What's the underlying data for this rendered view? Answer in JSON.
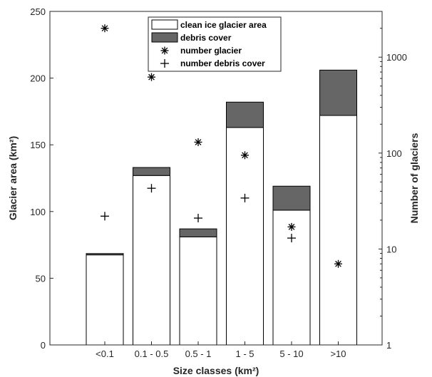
{
  "chart_data": {
    "type": "bar",
    "xlabel": "Size classes (km²)",
    "ylabel": "Glacier area (km²)",
    "y2label": "Number of glaciers",
    "categories": [
      "<0.1",
      "0.1 - 0.5",
      "0.5 - 1",
      "1 - 5",
      "5 - 10",
      ">10"
    ],
    "stacked": true,
    "ylim": [
      0,
      250
    ],
    "yticks": [
      "0",
      "50",
      "100",
      "150",
      "200",
      "250"
    ],
    "y2lim": [
      1,
      3000
    ],
    "y2scale": "log",
    "y2ticks": [
      "1",
      "10",
      "100",
      "1000"
    ],
    "series": [
      {
        "name": "clean ice glacier area",
        "axis": "left",
        "values": [
          67.5,
          127,
          81,
          163,
          101,
          172
        ],
        "color": "#ffffff"
      },
      {
        "name": "debris cover",
        "axis": "left",
        "values": [
          1,
          6,
          6,
          19,
          18,
          34
        ],
        "color": "#666666"
      },
      {
        "name": "number glacier",
        "axis": "right",
        "marker": "*",
        "values": [
          2000,
          620,
          130,
          95,
          17,
          7
        ]
      },
      {
        "name": "number debris cover",
        "axis": "right",
        "marker": "+",
        "values": [
          22,
          43,
          21,
          34,
          13,
          null
        ]
      }
    ],
    "legend": "top-center",
    "grid": false
  }
}
